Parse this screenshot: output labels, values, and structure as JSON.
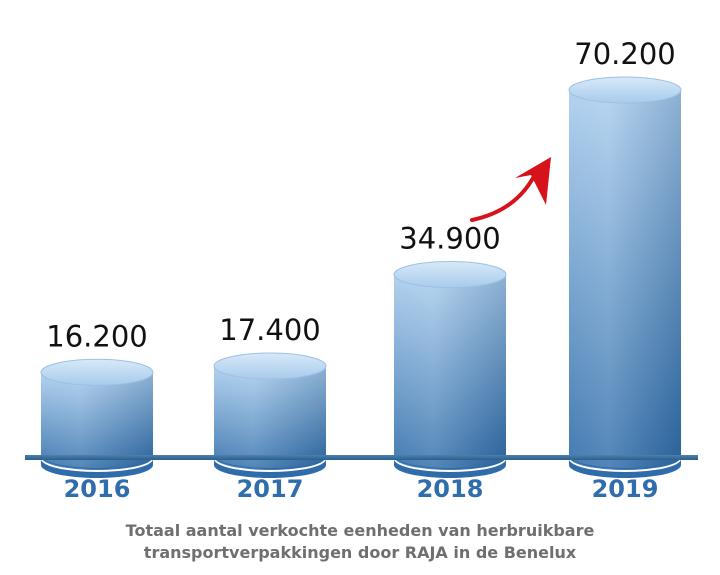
{
  "chart_data": {
    "type": "bar",
    "categories": [
      "2016",
      "2017",
      "2018",
      "2019"
    ],
    "values": [
      16200,
      17400,
      34900,
      70200
    ],
    "value_labels": [
      "16.200",
      "17.400",
      "34.900",
      "70.200"
    ],
    "title": "",
    "xlabel": "",
    "ylabel": "",
    "ylim": [
      0,
      70200
    ],
    "grid": false,
    "legend": "none",
    "bar_style": "3d-cylinder",
    "annotation": "red-curved-arrow-up",
    "colors": {
      "bar_top": "#bcd8f2",
      "bar_bottom": "#2d6ba8",
      "baseline": "#3a6f9e",
      "year_text": "#2f6eaa",
      "arrow": "#d6121b",
      "caption_text": "#6f6f6f"
    }
  },
  "caption": {
    "line1": "Totaal aantal verkochte eenheden van herbruikbare",
    "line2": "transportverpakkingen door RAJA in de Benelux"
  }
}
